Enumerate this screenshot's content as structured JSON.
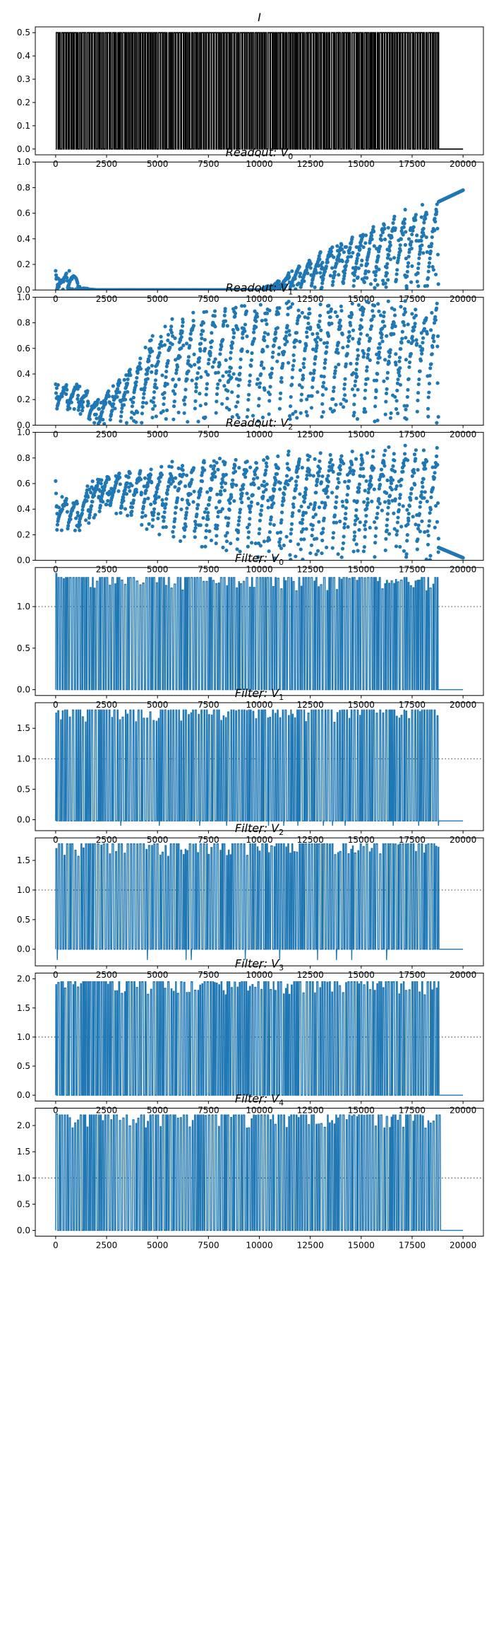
{
  "chart_data": [
    {
      "type": "line",
      "title_main": "I",
      "title_sub": "",
      "xlim": [
        -1000,
        21000
      ],
      "ylim": [
        -0.025,
        0.525
      ],
      "xticks": [
        0,
        2500,
        5000,
        7500,
        10000,
        12500,
        15000,
        17500,
        20000
      ],
      "yticks": [
        0.0,
        0.1,
        0.2,
        0.3,
        0.4,
        0.5
      ],
      "ytick_labels": [
        "0.0",
        "0.1",
        "0.2",
        "0.3",
        "0.4",
        "0.5"
      ],
      "color": "#000000",
      "style": "pulse",
      "pulse": {
        "low": 0.0,
        "high": 0.5,
        "start": 0,
        "end": 18800,
        "period": 125,
        "duty": 0.6,
        "tail_end": 20000
      },
      "hline": null
    },
    {
      "type": "scatter",
      "title_main": "Readout",
      "title_sub": "0",
      "title_prefix": ": V",
      "xlim": [
        -1000,
        21000
      ],
      "ylim": [
        0.0,
        1.0
      ],
      "xticks": [
        0,
        2500,
        5000,
        7500,
        10000,
        12500,
        15000,
        17500,
        20000
      ],
      "yticks": [
        0.0,
        0.2,
        0.4,
        0.6,
        0.8,
        1.0
      ],
      "ytick_labels": [
        "0.0",
        "0.2",
        "0.4",
        "0.6",
        "0.8",
        "1.0"
      ],
      "color": "#1f77b4",
      "style": "readout",
      "envelope_points": [
        [
          0,
          0.15
        ],
        [
          300,
          0.1
        ],
        [
          800,
          0.18
        ],
        [
          1200,
          0.02
        ],
        [
          2000,
          0.0
        ],
        [
          10000,
          0.0
        ],
        [
          11000,
          0.08
        ],
        [
          12000,
          0.2
        ],
        [
          13000,
          0.3
        ],
        [
          14000,
          0.38
        ],
        [
          15000,
          0.46
        ],
        [
          16000,
          0.55
        ],
        [
          17000,
          0.62
        ],
        [
          18000,
          0.67
        ],
        [
          18800,
          0.69
        ],
        [
          19500,
          0.76
        ],
        [
          20000,
          0.78
        ]
      ],
      "floor_points": [
        [
          0,
          0.0
        ],
        [
          20000,
          0.0
        ]
      ],
      "cycle": 520,
      "end": 18800,
      "tail": {
        "from": 18800,
        "to": 20000,
        "start_value": 0.69,
        "end_value": 0.78
      },
      "hline": null
    },
    {
      "type": "scatter",
      "title_main": "Readout",
      "title_sub": "1",
      "title_prefix": ": V",
      "xlim": [
        -1000,
        21000
      ],
      "ylim": [
        0.0,
        1.0
      ],
      "xticks": [
        0,
        2500,
        5000,
        7500,
        10000,
        12500,
        15000,
        17500,
        20000
      ],
      "yticks": [
        0.0,
        0.2,
        0.4,
        0.6,
        0.8,
        1.0
      ],
      "ytick_labels": [
        "0.0",
        "0.2",
        "0.4",
        "0.6",
        "0.8",
        "1.0"
      ],
      "color": "#1f77b4",
      "style": "readout",
      "envelope_points": [
        [
          0,
          0.32
        ],
        [
          1200,
          0.33
        ],
        [
          2000,
          0.2
        ],
        [
          3000,
          0.35
        ],
        [
          4000,
          0.55
        ],
        [
          5000,
          0.75
        ],
        [
          6000,
          0.86
        ],
        [
          7500,
          0.92
        ],
        [
          10000,
          0.96
        ],
        [
          12500,
          0.97
        ],
        [
          15000,
          0.97
        ],
        [
          17500,
          0.97
        ],
        [
          18800,
          0.98
        ]
      ],
      "floor_points": [
        [
          0,
          0.12
        ],
        [
          1200,
          0.08
        ],
        [
          2000,
          0.0
        ],
        [
          18800,
          0.0
        ]
      ],
      "cycle": 520,
      "end": 18800,
      "tail": null,
      "hline": null
    },
    {
      "type": "scatter",
      "title_main": "Readout",
      "title_sub": "2",
      "title_prefix": ": V",
      "xlim": [
        -1000,
        21000
      ],
      "ylim": [
        0.0,
        1.0
      ],
      "xticks": [
        0,
        2500,
        5000,
        7500,
        10000,
        12500,
        15000,
        17500,
        20000
      ],
      "yticks": [
        0.0,
        0.2,
        0.4,
        0.6,
        0.8,
        1.0
      ],
      "ytick_labels": [
        "0.0",
        "0.2",
        "0.4",
        "0.6",
        "0.8",
        "1.0"
      ],
      "color": "#1f77b4",
      "style": "readout",
      "envelope_points": [
        [
          0,
          0.62
        ],
        [
          300,
          0.5
        ],
        [
          1300,
          0.5
        ],
        [
          1600,
          0.6
        ],
        [
          2500,
          0.68
        ],
        [
          5000,
          0.76
        ],
        [
          7500,
          0.8
        ],
        [
          10000,
          0.84
        ],
        [
          12500,
          0.86
        ],
        [
          15000,
          0.88
        ],
        [
          17500,
          0.9
        ],
        [
          18800,
          0.9
        ]
      ],
      "floor_points": [
        [
          0,
          0.22
        ],
        [
          1300,
          0.22
        ],
        [
          2500,
          0.4
        ],
        [
          5000,
          0.2
        ],
        [
          7500,
          0.05
        ],
        [
          10000,
          0.0
        ],
        [
          18800,
          0.0
        ]
      ],
      "cycle": 520,
      "end": 18800,
      "tail": {
        "from": 18800,
        "to": 20000,
        "start_value": 0.1,
        "end_value": 0.02
      },
      "hline": null
    },
    {
      "type": "line",
      "title_main": "Filter",
      "title_sub": "0",
      "title_prefix": ": V",
      "xlim": [
        -1000,
        21000
      ],
      "ylim": [
        -0.07,
        1.47
      ],
      "xticks": [
        0,
        2500,
        5000,
        7500,
        10000,
        12500,
        15000,
        17500,
        20000
      ],
      "yticks": [
        0.0,
        0.5,
        1.0
      ],
      "ytick_labels": [
        "0.0",
        "0.5",
        "1.0"
      ],
      "color": "#1f77b4",
      "style": "spikes",
      "spike_peak": 1.35,
      "spike_min": 0.0,
      "first_peak": 1.4,
      "end": 18800,
      "tail_end": 20000,
      "period": 125,
      "duty": 0.55,
      "hline": 1.0
    },
    {
      "type": "line",
      "title_main": "Filter",
      "title_sub": "1",
      "title_prefix": ": V",
      "xlim": [
        -1000,
        21000
      ],
      "ylim": [
        -0.18,
        1.92
      ],
      "xticks": [
        0,
        2500,
        5000,
        7500,
        10000,
        12500,
        15000,
        17500,
        20000
      ],
      "yticks": [
        0.0,
        0.5,
        1.0,
        1.5
      ],
      "ytick_labels": [
        "0.0",
        "0.5",
        "1.0",
        "1.5"
      ],
      "color": "#1f77b4",
      "style": "spikes",
      "spike_peak": 1.8,
      "spike_min": -0.02,
      "first_peak": 1.75,
      "dip": -0.1,
      "end": 18800,
      "tail_end": 20000,
      "period": 125,
      "duty": 0.45,
      "hline": 1.0
    },
    {
      "type": "line",
      "title_main": "Filter",
      "title_sub": "2",
      "title_prefix": ": V",
      "xlim": [
        -1000,
        21000
      ],
      "ylim": [
        -0.28,
        1.88
      ],
      "xticks": [
        0,
        2500,
        5000,
        7500,
        10000,
        12500,
        15000,
        17500,
        20000
      ],
      "yticks": [
        0.0,
        0.5,
        1.0,
        1.5
      ],
      "ytick_labels": [
        "0.0",
        "0.5",
        "1.0",
        "1.5"
      ],
      "color": "#1f77b4",
      "style": "spikes",
      "spike_peak": 1.78,
      "spike_min": 0.0,
      "first_peak": 1.7,
      "dip": -0.18,
      "end": 18800,
      "tail_end": 20000,
      "period": 125,
      "duty": 0.5,
      "hline": 1.0
    },
    {
      "type": "line",
      "title_main": "Filter",
      "title_sub": "3",
      "title_prefix": ": V",
      "xlim": [
        -1000,
        21000
      ],
      "ylim": [
        -0.1,
        2.1
      ],
      "xticks": [
        0,
        2500,
        5000,
        7500,
        10000,
        12500,
        15000,
        17500,
        20000
      ],
      "yticks": [
        0.0,
        0.5,
        1.0,
        1.5,
        2.0
      ],
      "ytick_labels": [
        "0.0",
        "0.5",
        "1.0",
        "1.5",
        "2.0"
      ],
      "color": "#1f77b4",
      "style": "spikes",
      "spike_peak": 1.95,
      "spike_min": 0.0,
      "first_peak": 1.9,
      "end": 18800,
      "tail_end": 20000,
      "period": 125,
      "duty": 0.5,
      "hline": 1.0
    },
    {
      "type": "line",
      "title_main": "Filter",
      "title_sub": "4",
      "title_prefix": ": V",
      "xlim": [
        -1000,
        21000
      ],
      "ylim": [
        -0.11,
        2.33
      ],
      "xticks": [
        0,
        2500,
        5000,
        7500,
        10000,
        12500,
        15000,
        17500,
        20000
      ],
      "yticks": [
        0.0,
        0.5,
        1.0,
        1.5,
        2.0
      ],
      "ytick_labels": [
        "0.0",
        "0.5",
        "1.0",
        "1.5",
        "2.0"
      ],
      "color": "#1f77b4",
      "style": "spikes",
      "spike_peak": 2.2,
      "spike_min": 0.0,
      "first_peak": 2.22,
      "end": 18800,
      "tail_end": 20000,
      "period": 125,
      "duty": 0.5,
      "hline": 1.0
    }
  ],
  "colors": {
    "line": "#1f77b4",
    "input": "#000000",
    "axis": "#000000",
    "reference": "#555555"
  }
}
